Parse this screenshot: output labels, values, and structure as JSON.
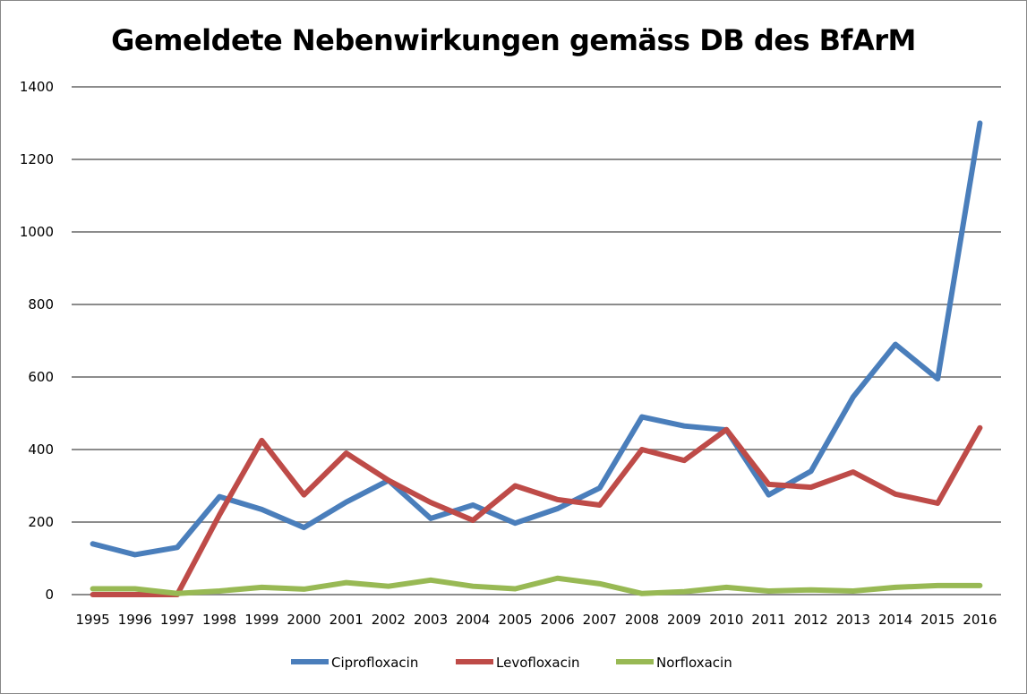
{
  "chart_data": {
    "type": "line",
    "title": "Gemeldete Nebenwirkungen gemäss DB des BfArM",
    "xlabel": "",
    "ylabel": "",
    "ylim": [
      0,
      1400
    ],
    "yticks": [
      "0",
      "200",
      "400",
      "600",
      "800",
      "1000",
      "1200",
      "1400"
    ],
    "grid": true,
    "legend": "bottom",
    "categories": [
      "1995",
      "1996",
      "1997",
      "1998",
      "1999",
      "2000",
      "2001",
      "2002",
      "2003",
      "2004",
      "2005",
      "2006",
      "2007",
      "2008",
      "2009",
      "2010",
      "2011",
      "2012",
      "2013",
      "2014",
      "2015",
      "2016"
    ],
    "series": [
      {
        "name": "Ciprofloxacin",
        "color": "#4a7ebb",
        "values": [
          140,
          110,
          130,
          270,
          235,
          185,
          255,
          315,
          210,
          247,
          197,
          237,
          294,
          490,
          465,
          454,
          275,
          340,
          545,
          690,
          595,
          1300
        ]
      },
      {
        "name": "Levofloxacin",
        "color": "#be4b48",
        "values": [
          0,
          0,
          0,
          220,
          425,
          275,
          390,
          315,
          254,
          205,
          300,
          262,
          247,
          400,
          370,
          455,
          304,
          296,
          338,
          277,
          252,
          460
        ]
      },
      {
        "name": "Norfloxacin",
        "color": "#98b954",
        "values": [
          16,
          16,
          3,
          10,
          20,
          15,
          33,
          23,
          40,
          23,
          16,
          45,
          30,
          3,
          8,
          20,
          10,
          13,
          10,
          20,
          25,
          25
        ]
      }
    ]
  }
}
